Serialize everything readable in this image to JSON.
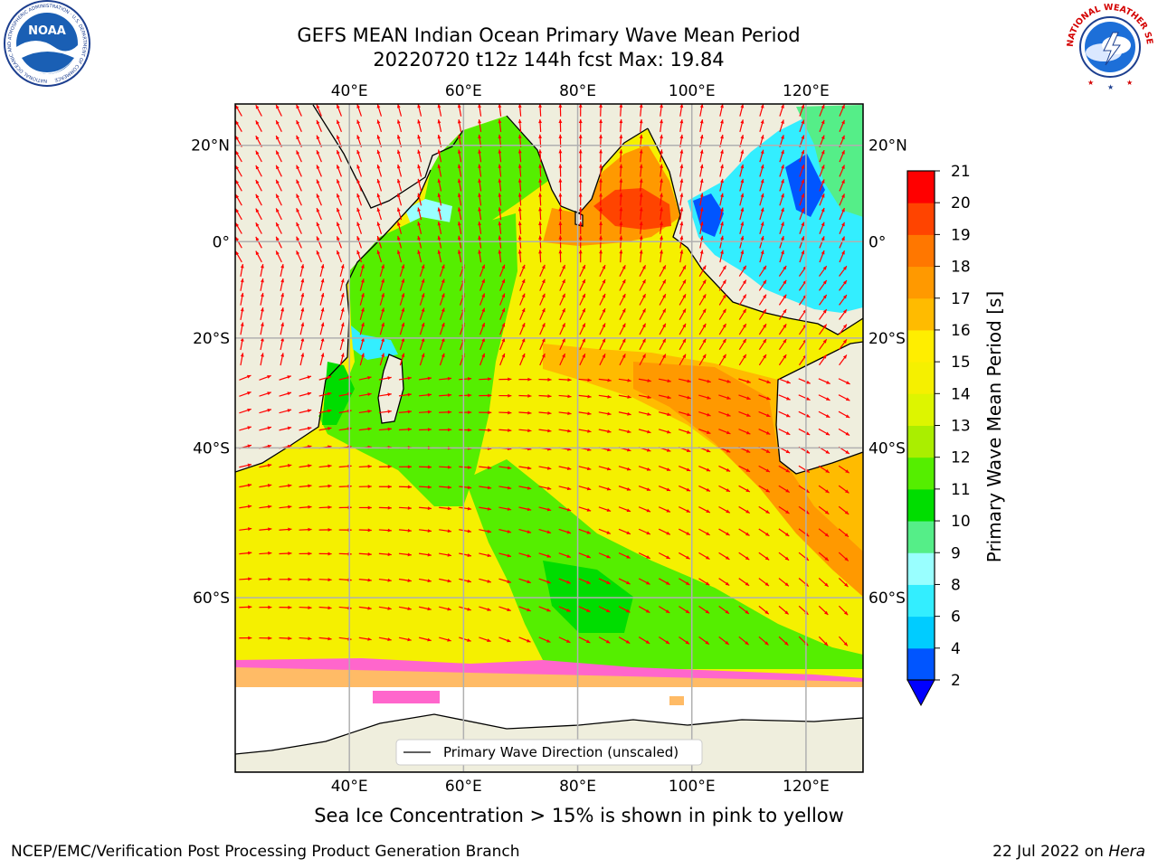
{
  "header": {
    "title_line1": "GEFS MEAN Indian Ocean Primary Wave Mean Period",
    "title_line2": "20220720 t12z 144h fcst   Max: 19.84"
  },
  "map": {
    "lon_range": [
      20,
      130
    ],
    "lat_range": [
      -74,
      28
    ],
    "lon_ticks": [
      {
        "value": 40,
        "label": "40°E"
      },
      {
        "value": 60,
        "label": "60°E"
      },
      {
        "value": 80,
        "label": "80°E"
      },
      {
        "value": 100,
        "label": "100°E"
      },
      {
        "value": 120,
        "label": "120°E"
      }
    ],
    "lat_ticks": [
      {
        "value": 20,
        "label": "20°N"
      },
      {
        "value": 0,
        "label": "0°"
      },
      {
        "value": -20,
        "label": "20°S"
      },
      {
        "value": -40,
        "label": "40°S"
      },
      {
        "value": -60,
        "label": "60°S"
      }
    ],
    "land_color": "#efeedd",
    "arrow_color": "#ff0000",
    "legend_label": "Primary Wave Direction (unscaled)"
  },
  "colorbar": {
    "label": "Primary Wave Mean Period [s]",
    "levels": [
      "2",
      "4",
      "6",
      "8",
      "9",
      "10",
      "11",
      "12",
      "13",
      "14",
      "15",
      "16",
      "17",
      "18",
      "19",
      "20",
      "21"
    ],
    "colors": [
      "#0055ff",
      "#00ccff",
      "#33eeff",
      "#99ffff",
      "#55ee88",
      "#00dd00",
      "#55ee00",
      "#aaee00",
      "#ddf500",
      "#f5f000",
      "#ffee00",
      "#ffbb00",
      "#ff9900",
      "#ff7700",
      "#ff4400",
      "#ff0000"
    ],
    "extend_color": "#0000ff"
  },
  "sea_ice_note": "Sea Ice Concentration > 15% is shown in pink to yellow",
  "footer": {
    "credit": "NCEP/EMC/Verification Post Processing Product Generation Branch",
    "date": "22 Jul 2022 on",
    "host": "Hera"
  },
  "logos": {
    "noaa_text": "NOAA",
    "noaa_ring_text": "NATIONAL OCEANIC AND ATMOSPHERIC ADMINISTRATION · U.S. DEPARTMENT OF COMMERCE",
    "nws_ring_text": "NATIONAL WEATHER SERVICE"
  }
}
